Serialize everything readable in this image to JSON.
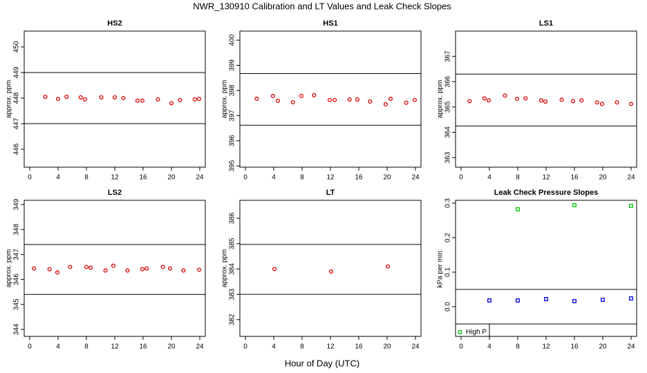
{
  "title": "NWR_130910  Calibration and LT Values and Leak Check Slopes",
  "xlabel": "Hour of Day (UTC)",
  "chart_data": [
    {
      "type": "scatter",
      "title": "HS2",
      "ylabel": "approx. ppm",
      "xlim": [
        -0.78,
        24.78
      ],
      "ylim": [
        445.3,
        450.62
      ],
      "xticks": [
        0,
        4,
        8,
        12,
        16,
        20,
        24
      ],
      "yticks": [
        446,
        447,
        448,
        449,
        450
      ],
      "hlines": [
        449,
        447
      ],
      "series": [
        {
          "color": "#e00000",
          "marker": "circle",
          "x": [
            2.2,
            4.0,
            5.2,
            7.2,
            7.8,
            10.1,
            12.0,
            13.2,
            15.2,
            15.9,
            18.1,
            20.0,
            21.2,
            23.3,
            23.9
          ],
          "values": [
            448.05,
            447.97,
            448.05,
            448.03,
            447.95,
            448.03,
            448.03,
            448.0,
            447.9,
            447.9,
            447.95,
            447.8,
            447.92,
            447.95,
            447.97
          ]
        }
      ]
    },
    {
      "type": "scatter",
      "title": "HS1",
      "ylabel": "approx. ppm",
      "xlim": [
        -0.78,
        24.78
      ],
      "ylim": [
        394.95,
        400.36
      ],
      "xticks": [
        0,
        4,
        8,
        12,
        16,
        20,
        24
      ],
      "yticks": [
        395,
        396,
        397,
        398,
        399,
        400
      ],
      "hlines": [
        398.67,
        396.62
      ],
      "series": [
        {
          "color": "#e00000",
          "marker": "circle",
          "x": [
            1.6,
            3.9,
            4.6,
            6.7,
            7.9,
            9.7,
            11.9,
            12.6,
            14.7,
            15.8,
            17.6,
            19.8,
            20.5,
            22.7,
            23.9
          ],
          "values": [
            397.67,
            397.78,
            397.59,
            397.53,
            397.78,
            397.81,
            397.62,
            397.62,
            397.64,
            397.64,
            397.56,
            397.45,
            397.67,
            397.51,
            397.62
          ]
        }
      ]
    },
    {
      "type": "scatter",
      "title": "LS1",
      "ylabel": "approx. ppm",
      "xlim": [
        -0.78,
        24.78
      ],
      "ylim": [
        362.62,
        368.0
      ],
      "xticks": [
        0,
        4,
        8,
        12,
        16,
        20,
        24
      ],
      "yticks": [
        363,
        364,
        365,
        366,
        367
      ],
      "hlines": [
        366.3,
        364.25
      ],
      "series": [
        {
          "color": "#e00000",
          "marker": "circle",
          "x": [
            1.2,
            3.3,
            3.9,
            6.2,
            7.9,
            9.1,
            11.3,
            11.9,
            14.2,
            15.8,
            17.0,
            19.2,
            19.9,
            22.0,
            24.0
          ],
          "values": [
            365.23,
            365.34,
            365.26,
            365.45,
            365.32,
            365.34,
            365.26,
            365.21,
            365.29,
            365.23,
            365.26,
            365.18,
            365.12,
            365.18,
            365.12
          ]
        }
      ]
    },
    {
      "type": "scatter",
      "title": "LS2",
      "ylabel": "approx. ppm",
      "xlim": [
        -0.78,
        24.78
      ],
      "ylim": [
        343.72,
        349.17
      ],
      "xticks": [
        0,
        4,
        8,
        12,
        16,
        20,
        24
      ],
      "yticks": [
        344,
        345,
        346,
        347,
        348,
        349
      ],
      "hlines": [
        347.4,
        345.4
      ],
      "series": [
        {
          "color": "#e00000",
          "marker": "circle",
          "x": [
            0.6,
            2.8,
            3.9,
            5.7,
            8.0,
            8.6,
            10.7,
            11.8,
            13.8,
            15.9,
            16.5,
            18.8,
            19.8,
            21.7,
            23.9
          ],
          "values": [
            346.44,
            346.41,
            346.28,
            346.5,
            346.5,
            346.47,
            346.36,
            346.55,
            346.36,
            346.41,
            346.44,
            346.5,
            346.44,
            346.36,
            346.39
          ]
        }
      ]
    },
    {
      "type": "scatter",
      "title": "LT",
      "ylabel": "approx. ppm",
      "xlim": [
        -0.78,
        24.78
      ],
      "ylim": [
        381.34,
        386.71
      ],
      "xticks": [
        0,
        4,
        8,
        12,
        16,
        20,
        24
      ],
      "yticks": [
        382,
        383,
        384,
        385,
        386
      ],
      "hlines": [
        384.97,
        383.0
      ],
      "series": [
        {
          "color": "#e00000",
          "marker": "circle",
          "x": [
            4.1,
            12.1,
            20.1
          ],
          "values": [
            384.0,
            383.9,
            384.1
          ]
        }
      ]
    },
    {
      "type": "scatter",
      "title": "Leak Check Pressure Slopes",
      "ylabel": "kPa per min.",
      "xlim": [
        -0.78,
        24.78
      ],
      "ylim": [
        -0.086,
        0.308
      ],
      "xticks": [
        0,
        4,
        8,
        12,
        16,
        20,
        24
      ],
      "yticks": [
        {
          "value": 0,
          "label": "0.0"
        },
        0.1,
        0.2,
        0.3
      ],
      "hlines": [
        0.05,
        -0.05
      ],
      "legend": "bottom-left",
      "series": [
        {
          "name": "High P",
          "color": "#00cc00",
          "marker": "square",
          "x": [
            8.0,
            16.0,
            24.0
          ],
          "values": [
            0.282,
            0.294,
            0.292
          ]
        },
        {
          "color": "#0000ee",
          "marker": "square",
          "x": [
            4.0,
            8.0,
            12.0,
            16.0,
            20.0,
            24.0
          ],
          "values": [
            0.018,
            0.018,
            0.022,
            0.016,
            0.02,
            0.024
          ]
        }
      ]
    }
  ]
}
